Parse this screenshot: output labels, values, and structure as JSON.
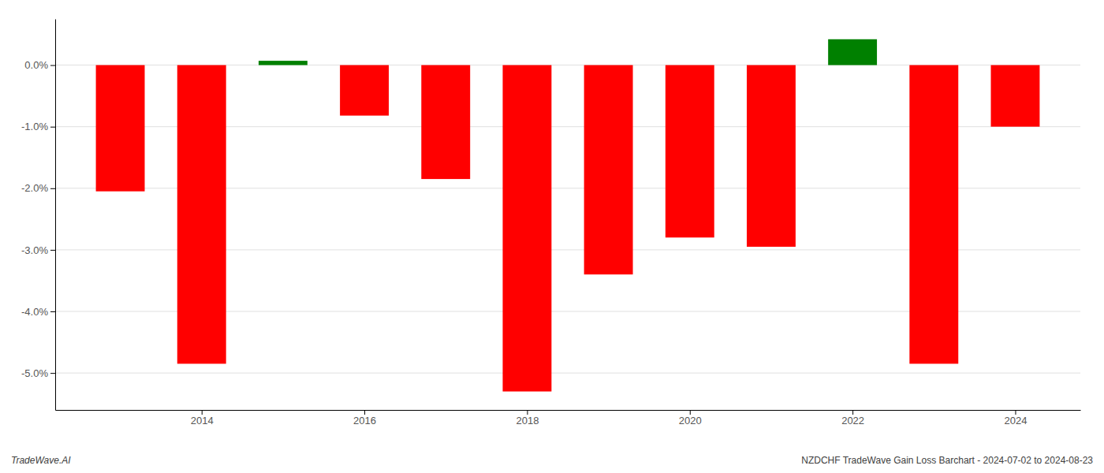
{
  "chart_data": {
    "type": "bar",
    "x": [
      2013,
      2014,
      2015,
      2016,
      2017,
      2018,
      2019,
      2020,
      2021,
      2022,
      2023,
      2024
    ],
    "values": [
      -2.05,
      -4.85,
      0.07,
      -0.82,
      -1.85,
      -5.3,
      -3.4,
      -2.8,
      -2.95,
      0.42,
      -4.85,
      -1.0
    ],
    "colors": [
      "#FF0000",
      "#FF0000",
      "#008000",
      "#FF0000",
      "#FF0000",
      "#FF0000",
      "#FF0000",
      "#FF0000",
      "#FF0000",
      "#008000",
      "#FF0000",
      "#FF0000"
    ],
    "xlim": [
      2012.2,
      2024.8
    ],
    "xticks": [
      2014,
      2016,
      2018,
      2020,
      2022,
      2024
    ],
    "ylim": [
      -5.6,
      0.75
    ],
    "yticks": [
      {
        "value": 0.0,
        "label": "0.0%"
      },
      {
        "value": -1.0,
        "label": "-1.0%"
      },
      {
        "value": -2.0,
        "label": "-2.0%"
      },
      {
        "value": -3.0,
        "label": "-3.0%"
      },
      {
        "value": -4.0,
        "label": "-4.0%"
      },
      {
        "value": -5.0,
        "label": "-5.0%"
      }
    ],
    "grid": true,
    "annotations": [
      "TradeWave.AI",
      "NZDCHF TradeWave Gain Loss Barchart - 2024-07-02 to 2024-08-23"
    ]
  }
}
